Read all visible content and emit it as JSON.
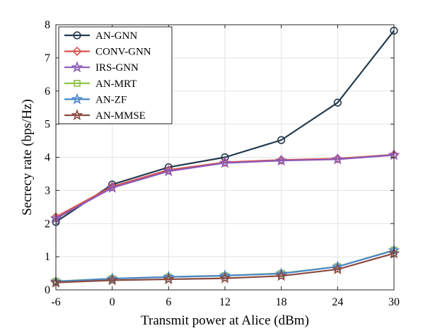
{
  "chart_data": {
    "type": "line",
    "xlabel": "Transmit power at Alice (dBm)",
    "ylabel": "Secrecy rate (bps/Hz)",
    "x": [
      -6,
      0,
      6,
      12,
      18,
      24,
      30
    ],
    "x_ticks": [
      "-6",
      "0",
      "6",
      "12",
      "18",
      "24",
      "30"
    ],
    "xlim": [
      -6,
      30
    ],
    "ylim": [
      0,
      8
    ],
    "y_ticks": [
      "0",
      "1",
      "2",
      "3",
      "4",
      "5",
      "6",
      "7",
      "8"
    ],
    "grid": true,
    "legend_position": "top-left",
    "series": [
      {
        "name": "AN-GNN",
        "color": "#243b4f",
        "marker": "circle",
        "values": [
          2.05,
          3.18,
          3.7,
          4.0,
          4.52,
          5.65,
          7.82
        ]
      },
      {
        "name": "CONV-GNN",
        "color": "#d9534f",
        "marker": "diamond",
        "values": [
          2.2,
          3.12,
          3.62,
          3.85,
          3.92,
          3.96,
          4.08
        ]
      },
      {
        "name": "IRS-GNN",
        "color": "#8a5ab8",
        "marker": "star",
        "values": [
          2.15,
          3.08,
          3.58,
          3.83,
          3.9,
          3.94,
          4.07
        ]
      },
      {
        "name": "AN-MRT",
        "color": "#8cc040",
        "marker": "square",
        "values": [
          0.26,
          0.34,
          0.39,
          0.43,
          0.5,
          0.7,
          1.2
        ]
      },
      {
        "name": "AN-ZF",
        "color": "#4a86c8",
        "marker": "star",
        "values": [
          0.25,
          0.34,
          0.39,
          0.43,
          0.49,
          0.7,
          1.19
        ]
      },
      {
        "name": "AN-MMSE",
        "color": "#8b4a3f",
        "marker": "star",
        "values": [
          0.22,
          0.29,
          0.32,
          0.35,
          0.42,
          0.62,
          1.1
        ]
      }
    ]
  }
}
